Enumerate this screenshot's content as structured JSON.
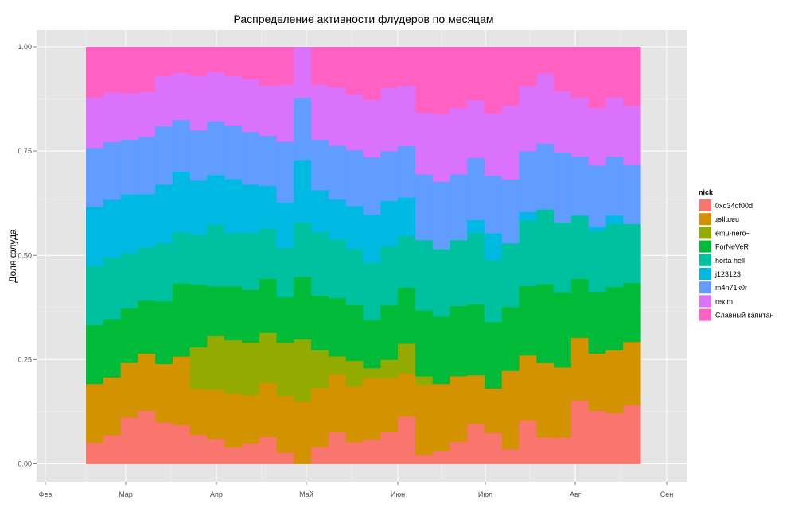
{
  "chart_data": {
    "type": "area",
    "stacked": "fill",
    "title": "Распределение активности флудеров по месяцам",
    "xlabel": "",
    "ylabel": "Доля флуда",
    "x_ticks": [
      "Фев",
      "Мар",
      "Апр",
      "Май",
      "Июн",
      "Июл",
      "Авг",
      "Сен"
    ],
    "y_ticks": [
      "0.00",
      "0.25",
      "0.50",
      "0.75",
      "1.00"
    ],
    "ylim": [
      0,
      1
    ],
    "legend_title": "nick",
    "legend_position": "right",
    "grid": true,
    "series": [
      {
        "name": "0xd34df00d",
        "color": "#F8766D",
        "values": [
          0.05,
          0.07,
          0.11,
          0.13,
          0.1,
          0.09,
          0.07,
          0.06,
          0.04,
          0.05,
          0.07,
          0.03,
          0.0,
          0.04,
          0.07,
          0.05,
          0.05,
          0.07,
          0.11,
          0.02,
          0.03,
          0.05,
          0.09,
          0.07,
          0.03,
          0.1,
          0.06,
          0.06,
          0.15,
          0.13,
          0.12,
          0.14
        ]
      },
      {
        "name": "ɹǝʇlɯɐu",
        "color": "#D39200",
        "values": [
          0.14,
          0.14,
          0.13,
          0.14,
          0.14,
          0.16,
          0.11,
          0.12,
          0.13,
          0.12,
          0.14,
          0.15,
          0.16,
          0.14,
          0.13,
          0.13,
          0.13,
          0.12,
          0.1,
          0.16,
          0.16,
          0.15,
          0.11,
          0.1,
          0.16,
          0.15,
          0.17,
          0.16,
          0.15,
          0.14,
          0.15,
          0.15
        ]
      },
      {
        "name": "emu-nero~",
        "color": "#93AA00",
        "values": [
          0.0,
          0.0,
          0.0,
          0.0,
          0.0,
          0.0,
          0.1,
          0.13,
          0.13,
          0.13,
          0.13,
          0.14,
          0.16,
          0.09,
          0.04,
          0.06,
          0.02,
          0.04,
          0.07,
          0.02,
          0.0,
          0.0,
          0.0,
          0.0,
          0.0,
          0.0,
          0.0,
          0.0,
          0.0,
          0.0,
          0.0,
          0.0
        ]
      },
      {
        "name": "ForNeVeR",
        "color": "#00BA38",
        "values": [
          0.14,
          0.14,
          0.13,
          0.13,
          0.15,
          0.17,
          0.15,
          0.12,
          0.13,
          0.13,
          0.14,
          0.12,
          0.16,
          0.13,
          0.13,
          0.13,
          0.1,
          0.12,
          0.13,
          0.15,
          0.16,
          0.16,
          0.16,
          0.15,
          0.13,
          0.16,
          0.18,
          0.17,
          0.14,
          0.15,
          0.15,
          0.14
        ]
      },
      {
        "name": "horta hell",
        "color": "#00C19F",
        "values": [
          0.14,
          0.15,
          0.13,
          0.13,
          0.14,
          0.12,
          0.12,
          0.15,
          0.13,
          0.14,
          0.13,
          0.13,
          0.14,
          0.15,
          0.13,
          0.13,
          0.12,
          0.13,
          0.12,
          0.16,
          0.16,
          0.15,
          0.16,
          0.14,
          0.13,
          0.15,
          0.17,
          0.16,
          0.15,
          0.15,
          0.15,
          0.14
        ]
      },
      {
        "name": "j123123",
        "color": "#00B9E3",
        "values": [
          0.14,
          0.14,
          0.14,
          0.13,
          0.14,
          0.14,
          0.13,
          0.12,
          0.13,
          0.12,
          0.11,
          0.12,
          0.16,
          0.1,
          0.09,
          0.1,
          0.1,
          0.1,
          0.09,
          0.0,
          0.0,
          0.0,
          0.03,
          0.06,
          0.0,
          0.02,
          0.0,
          0.0,
          0.0,
          0.01,
          0.02,
          0.0
        ]
      },
      {
        "name": "m4n71k0r",
        "color": "#619CFF",
        "values": [
          0.14,
          0.14,
          0.13,
          0.14,
          0.14,
          0.12,
          0.12,
          0.13,
          0.13,
          0.13,
          0.13,
          0.16,
          0.16,
          0.12,
          0.12,
          0.13,
          0.12,
          0.11,
          0.12,
          0.15,
          0.16,
          0.15,
          0.14,
          0.13,
          0.13,
          0.14,
          0.15,
          0.16,
          0.14,
          0.15,
          0.14,
          0.14
        ]
      },
      {
        "name": "rexim",
        "color": "#DB72FB",
        "values": [
          0.12,
          0.12,
          0.11,
          0.11,
          0.12,
          0.11,
          0.13,
          0.12,
          0.12,
          0.13,
          0.13,
          0.15,
          0.13,
          0.13,
          0.13,
          0.13,
          0.12,
          0.14,
          0.14,
          0.14,
          0.16,
          0.15,
          0.13,
          0.14,
          0.15,
          0.15,
          0.16,
          0.14,
          0.14,
          0.14,
          0.14,
          0.14
        ]
      },
      {
        "name": "Славный капитан",
        "color": "#FF61C3",
        "values": [
          0.12,
          0.11,
          0.11,
          0.11,
          0.07,
          0.06,
          0.07,
          0.06,
          0.07,
          0.08,
          0.1,
          0.1,
          0.0,
          0.09,
          0.09,
          0.11,
          0.11,
          0.09,
          0.09,
          0.15,
          0.16,
          0.14,
          0.12,
          0.15,
          0.12,
          0.09,
          0.06,
          0.1,
          0.12,
          0.15,
          0.12,
          0.14
        ]
      }
    ],
    "colors": {
      "panel_bg": "#E5E5E5",
      "grid_major": "#FFFFFF",
      "grid_minor": "#F2F2F2",
      "tick_text": "#4D4D4D"
    }
  }
}
